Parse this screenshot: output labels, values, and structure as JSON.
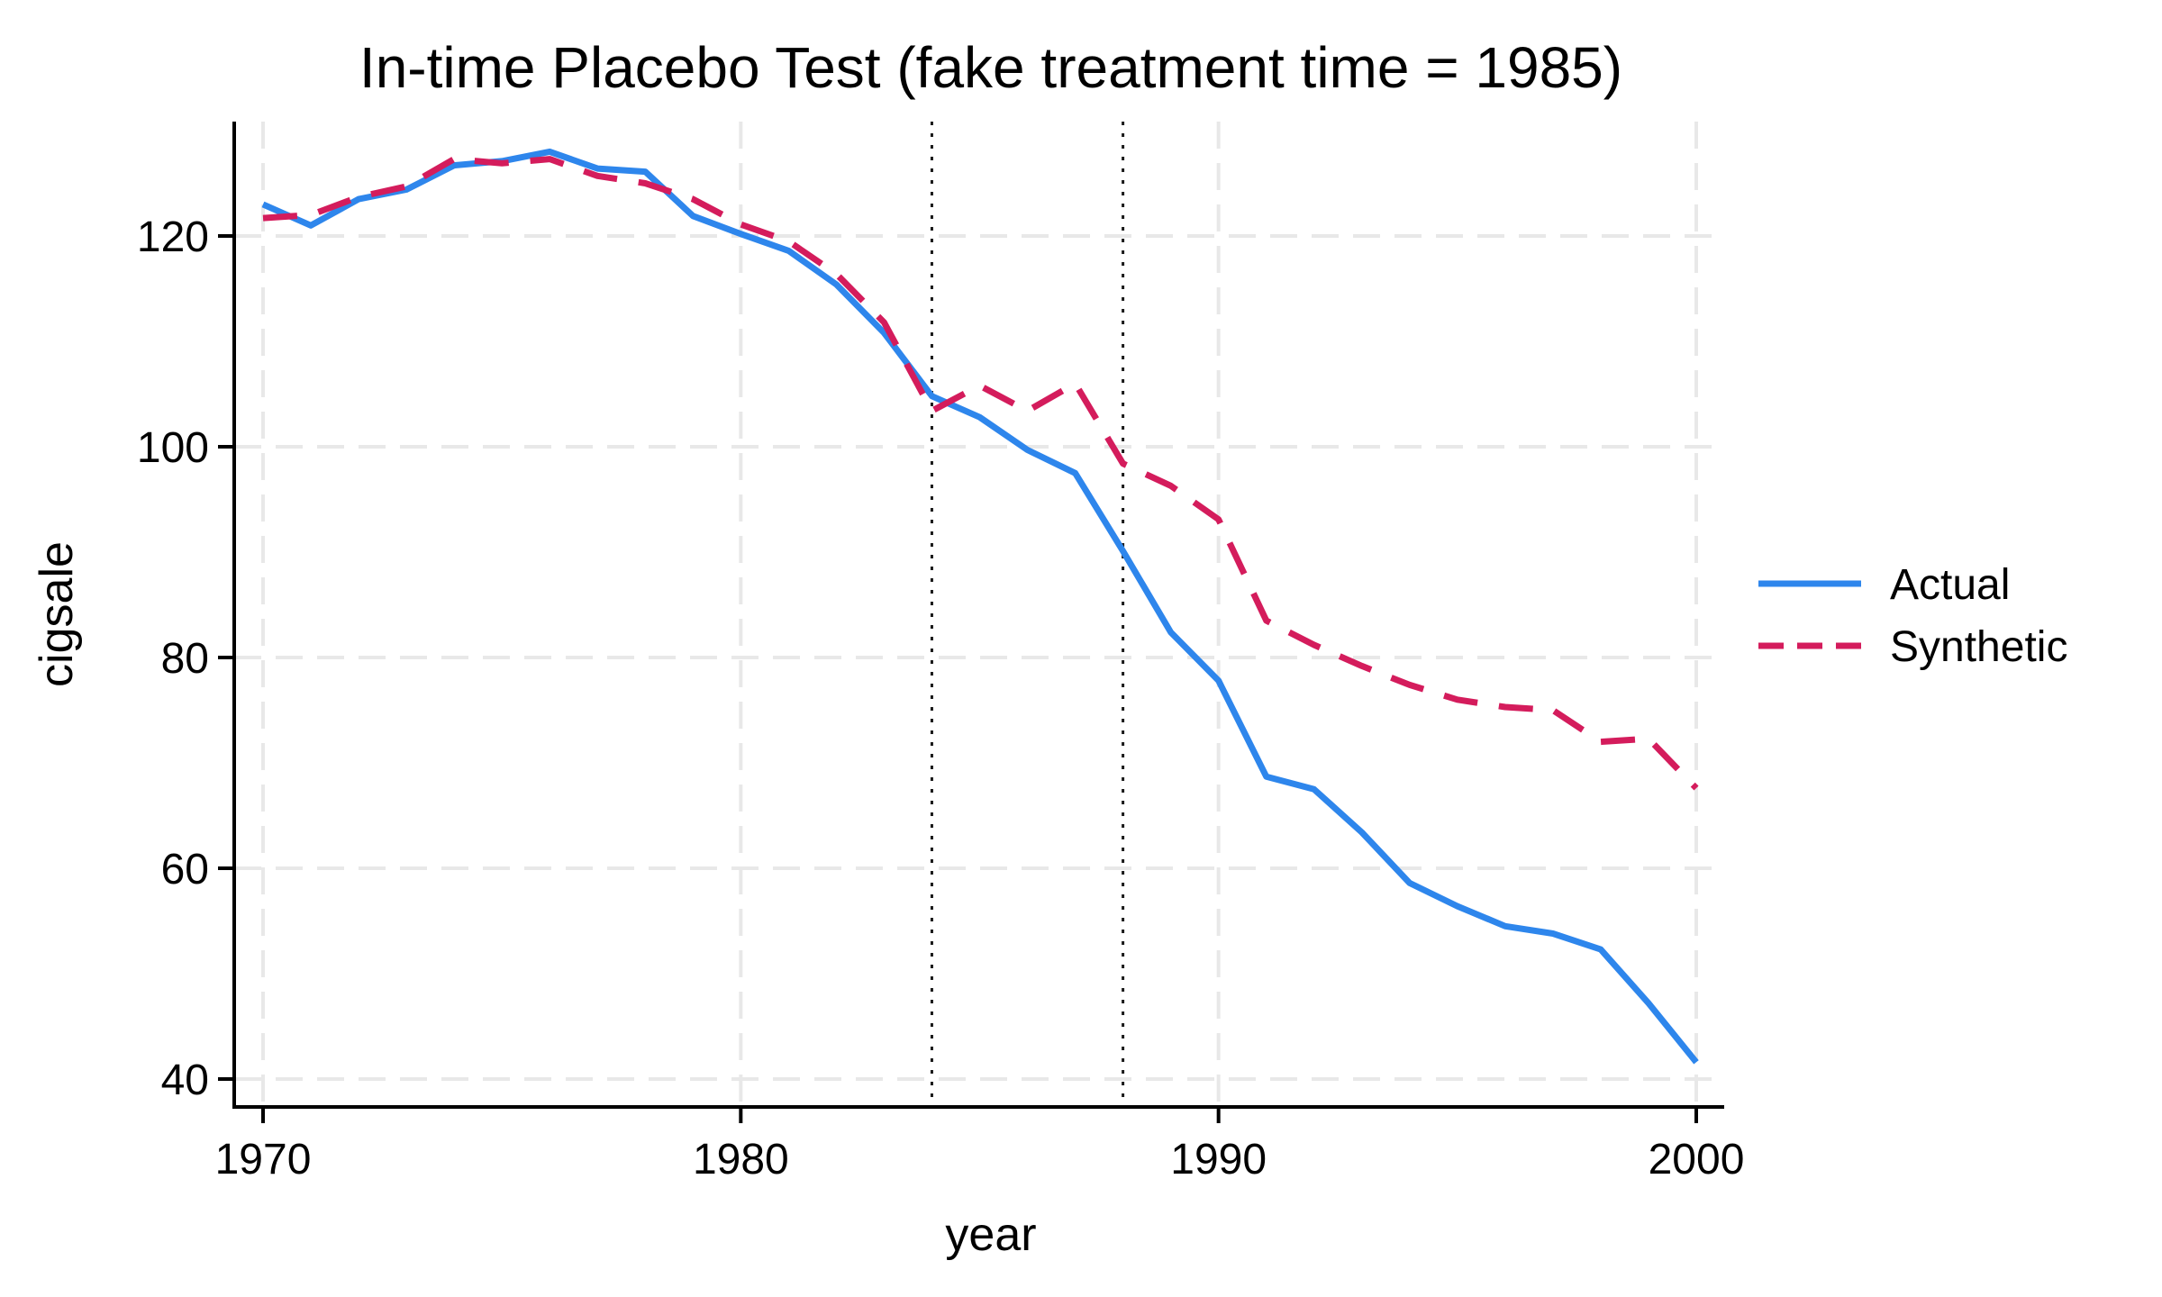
{
  "page": {
    "background": "#ffffff"
  },
  "chart_data": {
    "type": "line",
    "title": "In-time Placebo Test (fake treatment time = 1985)",
    "xlabel": "year",
    "ylabel": "cigsale",
    "x_ticks": [
      1970,
      1980,
      1990,
      2000
    ],
    "y_ticks": [
      40,
      60,
      80,
      100,
      120
    ],
    "xlim": [
      1969.4,
      2000.6
    ],
    "ylim": [
      37.3,
      130.9
    ],
    "grid": true,
    "gridline_color": "#e8e8e8",
    "axis_color": "#000000",
    "placebo_vlines": {
      "years": [
        1984,
        1988
      ],
      "color": "#1a1a1a",
      "style": "dotted"
    },
    "legend": {
      "position": "right-middle"
    },
    "x": [
      1970,
      1971,
      1972,
      1973,
      1974,
      1975,
      1976,
      1977,
      1978,
      1979,
      1980,
      1981,
      1982,
      1983,
      1984,
      1985,
      1986,
      1987,
      1988,
      1989,
      1990,
      1991,
      1992,
      1993,
      1994,
      1995,
      1996,
      1997,
      1998,
      1999,
      2000
    ],
    "series": [
      {
        "name": "Actual",
        "color": "#2e86ec",
        "line_style": "solid",
        "values": [
          123.0,
          121.0,
          123.5,
          124.4,
          126.7,
          127.1,
          128.0,
          126.4,
          126.1,
          121.9,
          120.2,
          118.6,
          115.4,
          110.8,
          104.8,
          102.8,
          99.7,
          97.5,
          90.1,
          82.4,
          77.8,
          68.7,
          67.5,
          63.4,
          58.6,
          56.4,
          54.5,
          53.8,
          52.3,
          47.2,
          41.6
        ]
      },
      {
        "name": "Synthetic",
        "color": "#d41c5c",
        "line_style": "dashed",
        "values": [
          121.7,
          122.0,
          123.7,
          124.7,
          127.3,
          126.9,
          127.3,
          125.7,
          125.0,
          123.5,
          121.1,
          119.5,
          116.4,
          111.8,
          103.4,
          105.8,
          103.4,
          106.0,
          98.4,
          96.3,
          93.1,
          83.5,
          81.2,
          79.2,
          77.4,
          76.0,
          75.3,
          75.0,
          72.0,
          72.3,
          67.6
        ]
      }
    ]
  }
}
